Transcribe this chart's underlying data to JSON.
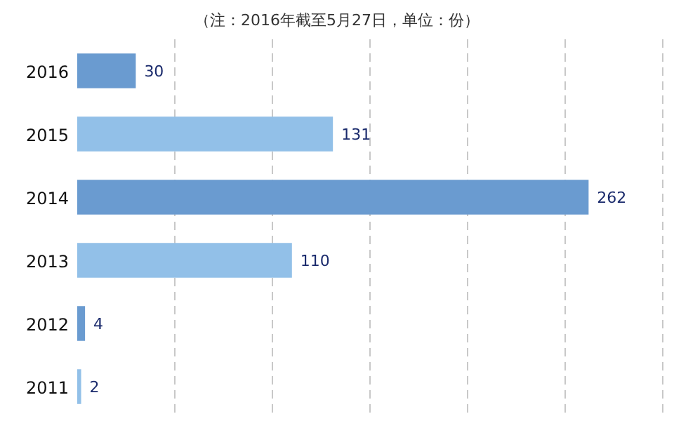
{
  "chart_data": {
    "type": "bar",
    "orientation": "horizontal",
    "annotations": [
      "（注：2016年截至5月27日，单位：份）"
    ],
    "categories": [
      "2016",
      "2015",
      "2014",
      "2013",
      "2012",
      "2011"
    ],
    "values": [
      30,
      131,
      262,
      110,
      4,
      2
    ],
    "colors": [
      "#6a9bd0",
      "#92c0e8",
      "#6a9bd0",
      "#92c0e8",
      "#6a9bd0",
      "#92c0e8"
    ],
    "xlim": [
      0,
      300
    ],
    "xticks": [
      {
        "value": 50,
        "label": null
      },
      {
        "value": 100,
        "label": null
      },
      {
        "value": 150,
        "label": null
      },
      {
        "value": 200,
        "label": null
      },
      {
        "value": 250,
        "label": null
      },
      {
        "value": 300,
        "label": null
      }
    ],
    "grid": "x",
    "tick_labels": "y",
    "data_labels": true
  }
}
